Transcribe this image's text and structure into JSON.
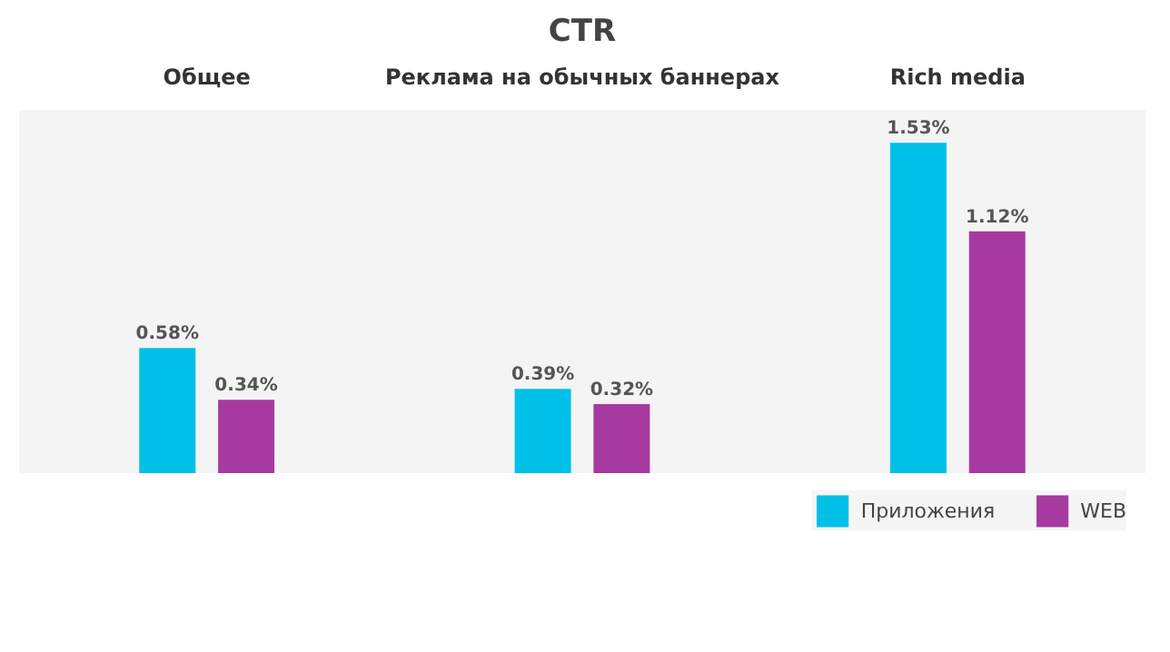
{
  "chart_data": {
    "type": "bar",
    "title": "CTR",
    "categories": [
      "Общее",
      "Реклама на обычных баннерах",
      "Rich media"
    ],
    "legend": "bottom right",
    "series": [
      {
        "name": "Приложения",
        "color": "#00c0e8",
        "values": [
          0.58,
          0.39,
          1.53
        ],
        "value_labels": [
          "0.58%",
          "0.39%",
          "1.53%"
        ]
      },
      {
        "name": "WEB",
        "color": "#a63aa0",
        "values": [
          0.34,
          0.32,
          1.12
        ],
        "value_labels": [
          "0.34%",
          "0.32%",
          "1.12%"
        ]
      }
    ]
  }
}
